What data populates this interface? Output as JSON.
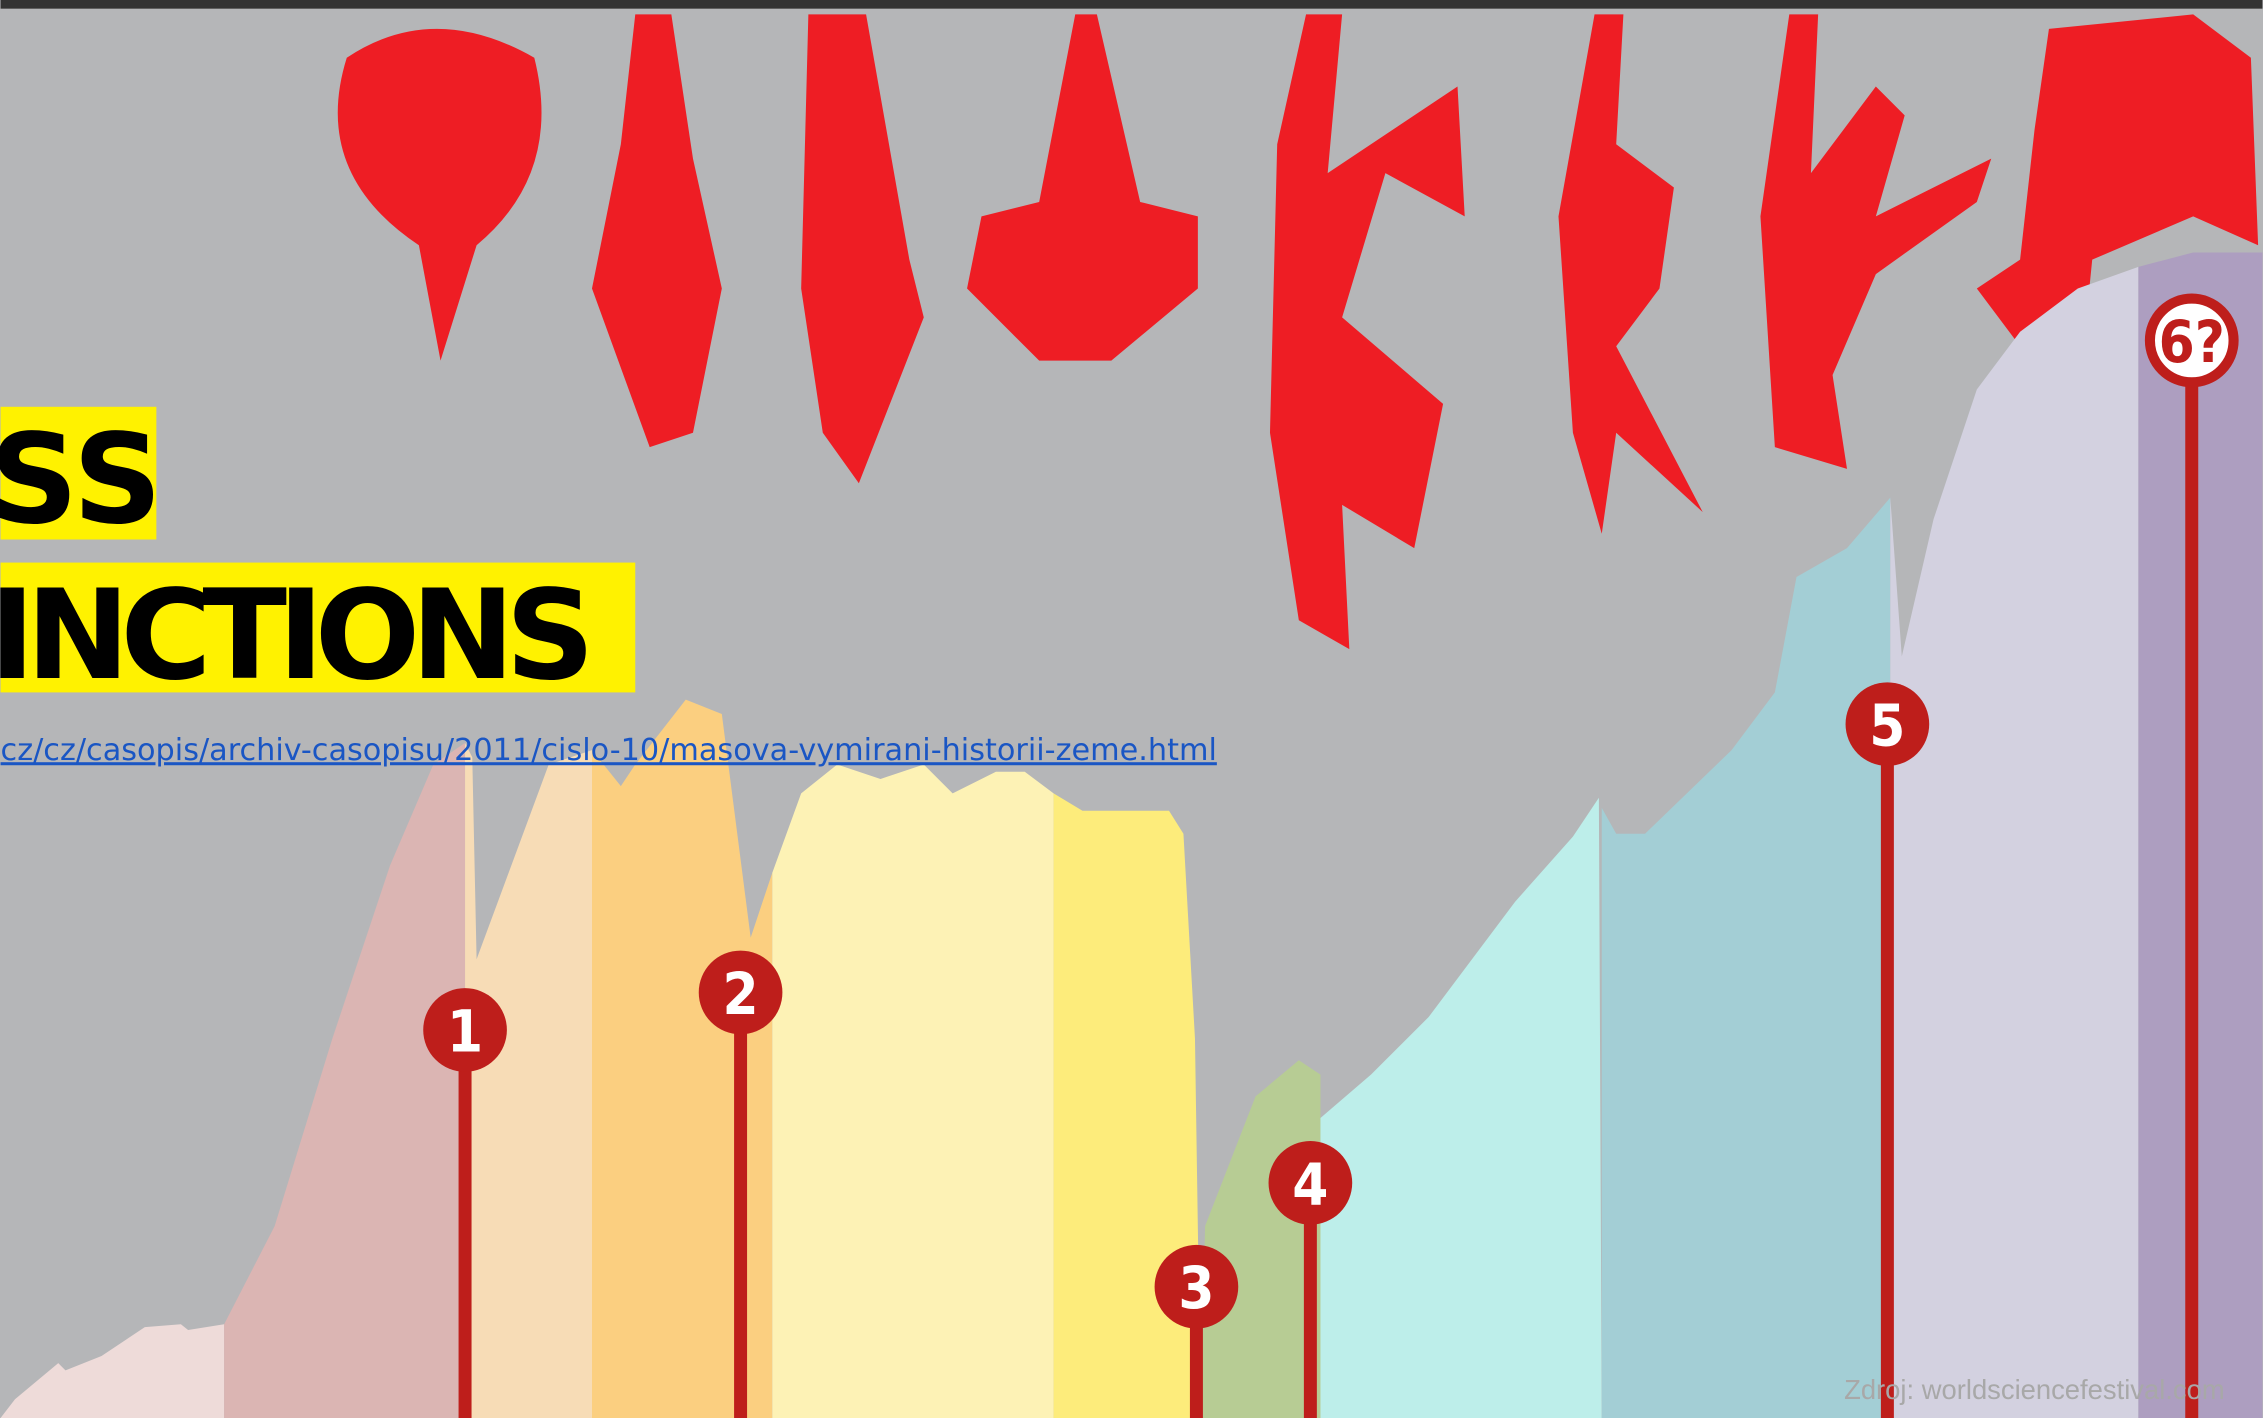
{
  "title": {
    "line1": "SS",
    "line2": "INCTIONS"
  },
  "link": "cz/cz/casopis/archiv-casopisu/2011/cislo-10/masova-vymirani-historii-zeme.html",
  "markers": [
    "1",
    "2",
    "3",
    "4",
    "5",
    "6?"
  ],
  "source": "Zdroj: worldsciencefestival.com"
}
